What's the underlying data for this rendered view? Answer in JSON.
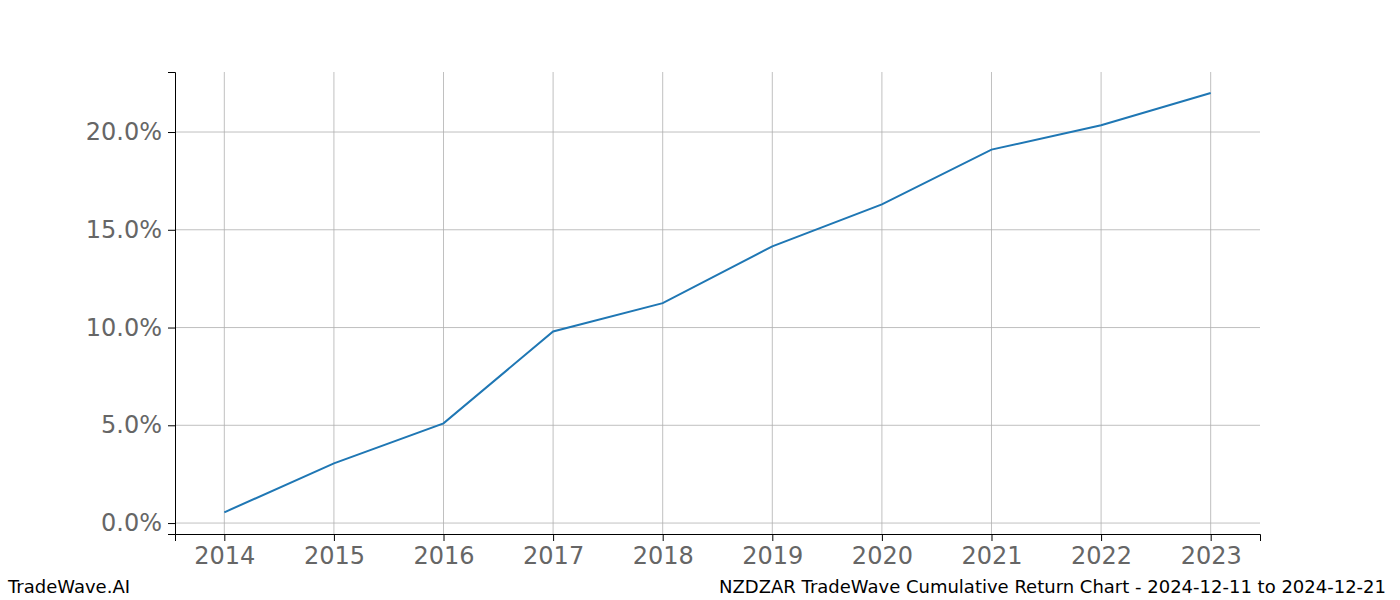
{
  "chart_data": {
    "type": "line",
    "title": "NZDZAR TradeWave Cumulative Return Chart - 2024-12-11 to 2024-12-21",
    "annotations": [
      "TradeWave.AI"
    ],
    "x": [
      2014,
      2015,
      2016,
      2017,
      2018,
      2019,
      2020,
      2021,
      2022,
      2023
    ],
    "values": [
      0.55,
      3.05,
      5.1,
      9.8,
      11.25,
      14.15,
      16.3,
      19.1,
      20.35,
      22.0
    ],
    "color": "#1f77b4",
    "xlim": [
      2013.55,
      2023.45
    ],
    "xticks": [
      2014,
      2015,
      2016,
      2017,
      2018,
      2019,
      2020,
      2021,
      2022,
      2023
    ],
    "ylim": [
      -0.56,
      23.07
    ],
    "yticks": [
      {
        "value": 0,
        "label": "0.0%"
      },
      {
        "value": 5,
        "label": "5.0%"
      },
      {
        "value": 10,
        "label": "10.0%"
      },
      {
        "value": 15,
        "label": "15.0%"
      },
      {
        "value": 20,
        "label": "20.0%"
      }
    ],
    "grid": true
  }
}
